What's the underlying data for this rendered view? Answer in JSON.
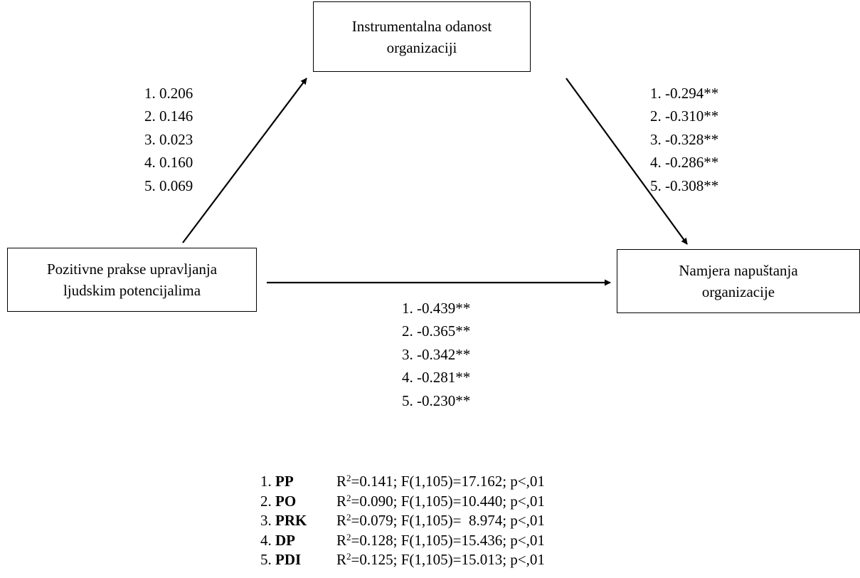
{
  "nodes": {
    "mediator": {
      "line1": "Instrumentalna odanost",
      "line2": "organizaciji"
    },
    "predictor": {
      "line1": "Pozitivne prakse upravljanja",
      "line2": "ljudskim potencijalima"
    },
    "outcome": {
      "line1": "Namjera napuštanja",
      "line2": "organizacije"
    }
  },
  "paths": {
    "a": [
      "1. 0.206",
      "2. 0.146",
      "3. 0.023",
      "4. 0.160",
      "5. 0.069"
    ],
    "b": [
      "1. -0.294**",
      "2. -0.310**",
      "3. -0.328**",
      "4. -0.286**",
      "5. -0.308**"
    ],
    "c": [
      "1. -0.439**",
      "2. -0.365**",
      "3. -0.342**",
      "4. -0.281**",
      "5. -0.230**"
    ]
  },
  "stats": [
    {
      "num": "1.",
      "code": "PP",
      "r2_prefix": "R",
      "r2_sup": "2",
      "r2_rest": "=0.141; F(1,105)=17.162; p<,01"
    },
    {
      "num": "2.",
      "code": "PO",
      "r2_prefix": "R",
      "r2_sup": "2",
      "r2_rest": "=0.090; F(1,105)=10.440; p<,01"
    },
    {
      "num": "3.",
      "code": "PRK",
      "r2_prefix": "R",
      "r2_sup": "2",
      "r2_rest": "=0.079; F(1,105)=  8.974; p<,01"
    },
    {
      "num": "4.",
      "code": "DP",
      "r2_prefix": "R",
      "r2_sup": "2",
      "r2_rest": "=0.128; F(1,105)=15.436; p<,01"
    },
    {
      "num": "5.",
      "code": "PDI",
      "r2_prefix": "R",
      "r2_sup": "2",
      "r2_rest": "=0.125; F(1,105)=15.013; p<,01"
    }
  ]
}
